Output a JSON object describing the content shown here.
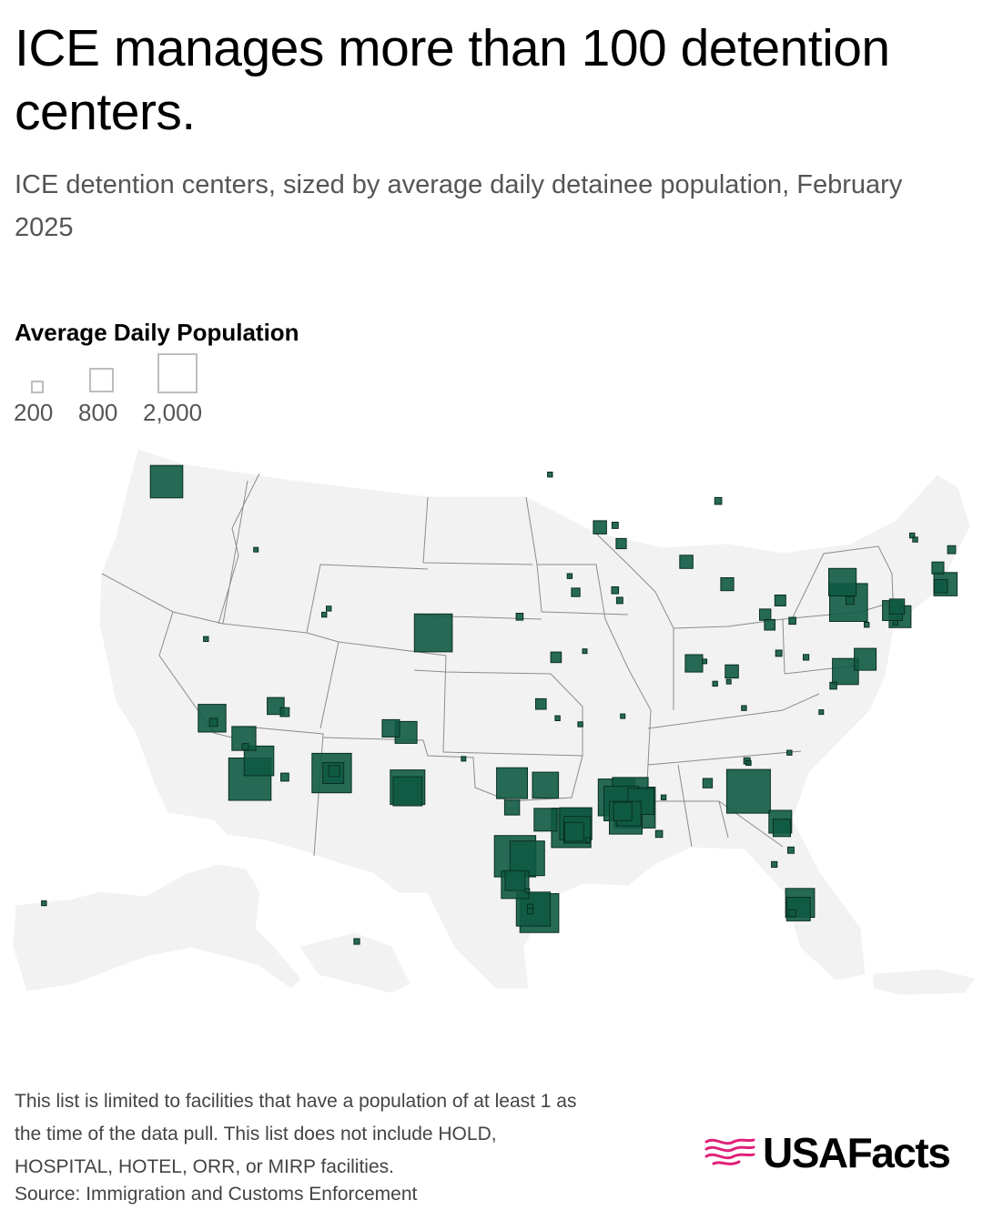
{
  "header": {
    "title": "ICE manages more than 100 detention centers.",
    "subtitle": "ICE detention centers, sized by average daily detainee population, February 2025"
  },
  "legend": {
    "title": "Average Daily Population",
    "items": [
      {
        "label": "200",
        "value": 200
      },
      {
        "label": "800",
        "value": 800
      },
      {
        "label": "2,000",
        "value": 2000
      }
    ]
  },
  "footer": {
    "note_line1": "This list is limited to facilities that have a population of at least 1 as",
    "note_line2": "the time of the data pull. This list does not include HOLD,",
    "note_line3": "HOSPITAL, HOTEL, ORR, or MIRP facilities.",
    "source": "Source: Immigration and Customs Enforcement",
    "brand": "USAFacts"
  },
  "colors": {
    "marker_fill": "#0f5a43",
    "marker_stroke": "#0a2f23",
    "map_fill": "#f2f2f2",
    "map_border": "#8a8a8a",
    "brand_pink": "#e0207a"
  },
  "chart_data": {
    "type": "proportional-symbol-map",
    "title": "ICE manages more than 100 detention centers.",
    "subtitle": "ICE detention centers, sized by average daily detainee population, February 2025",
    "size_variable": "Average Daily Population",
    "legend_values": [
      200,
      800,
      2000
    ],
    "facilities": [
      {
        "region": "Washington",
        "lon": -122.4,
        "lat": 47.25,
        "population": 1320
      },
      {
        "region": "Idaho",
        "lon": -116.5,
        "lat": 43.9,
        "population": 20
      },
      {
        "region": "Utah",
        "lon": -112.0,
        "lat": 40.7,
        "population": 30
      },
      {
        "region": "Utah",
        "lon": -111.7,
        "lat": 41.0,
        "population": 30
      },
      {
        "region": "Nevada",
        "lon": -119.8,
        "lat": 39.5,
        "population": 30
      },
      {
        "region": "Nevada",
        "lon": -115.2,
        "lat": 36.2,
        "population": 360
      },
      {
        "region": "Nevada",
        "lon": -114.6,
        "lat": 35.9,
        "population": 100
      },
      {
        "region": "California",
        "lon": -119.4,
        "lat": 35.6,
        "population": 960
      },
      {
        "region": "California",
        "lon": -119.3,
        "lat": 35.4,
        "population": 80
      },
      {
        "region": "California",
        "lon": -117.3,
        "lat": 34.6,
        "population": 720
      },
      {
        "region": "California",
        "lon": -117.2,
        "lat": 34.2,
        "population": 50
      },
      {
        "region": "California",
        "lon": -116.3,
        "lat": 33.5,
        "population": 1100
      },
      {
        "region": "California",
        "lon": -116.9,
        "lat": 32.6,
        "population": 2250
      },
      {
        "region": "Arizona",
        "lon": -114.6,
        "lat": 32.7,
        "population": 80
      },
      {
        "region": "Arizona",
        "lon": -111.5,
        "lat": 32.9,
        "population": 1950
      },
      {
        "region": "Arizona",
        "lon": -111.4,
        "lat": 32.9,
        "population": 550
      },
      {
        "region": "Arizona",
        "lon": -111.35,
        "lat": 33.0,
        "population": 150
      },
      {
        "region": "Colorado",
        "lon": -104.8,
        "lat": 39.8,
        "population": 1800
      },
      {
        "region": "New Mexico",
        "lon": -107.6,
        "lat": 35.1,
        "population": 380
      },
      {
        "region": "New Mexico",
        "lon": -106.6,
        "lat": 34.9,
        "population": 600
      },
      {
        "region": "New Mexico",
        "lon": -106.5,
        "lat": 32.2,
        "population": 1500
      },
      {
        "region": "New Mexico",
        "lon": -106.5,
        "lat": 32.0,
        "population": 1050
      },
      {
        "region": "Texas",
        "lon": -102.8,
        "lat": 33.6,
        "population": 20
      },
      {
        "region": "Texas",
        "lon": -99.6,
        "lat": 32.4,
        "population": 1200
      },
      {
        "region": "Texas",
        "lon": -99.6,
        "lat": 31.2,
        "population": 280
      },
      {
        "region": "Texas",
        "lon": -97.4,
        "lat": 32.3,
        "population": 850
      },
      {
        "region": "Texas",
        "lon": -97.4,
        "lat": 30.6,
        "population": 650
      },
      {
        "region": "Texas",
        "lon": -99.4,
        "lat": 28.8,
        "population": 2150
      },
      {
        "region": "Texas",
        "lon": -98.6,
        "lat": 28.7,
        "population": 1500
      },
      {
        "region": "Texas",
        "lon": -99.4,
        "lat": 27.4,
        "population": 950
      },
      {
        "region": "Texas",
        "lon": -99.4,
        "lat": 27.6,
        "population": 500
      },
      {
        "region": "Texas",
        "lon": -98.6,
        "lat": 27.1,
        "population": 20
      },
      {
        "region": "Texas",
        "lon": -98.2,
        "lat": 26.2,
        "population": 1450
      },
      {
        "region": "Texas",
        "lon": -97.8,
        "lat": 26.0,
        "population": 1900
      },
      {
        "region": "Texas",
        "lon": -98.4,
        "lat": 26.3,
        "population": 40
      },
      {
        "region": "Texas",
        "lon": -98.4,
        "lat": 26.1,
        "population": 40
      },
      {
        "region": "Texas",
        "lon": -95.7,
        "lat": 30.2,
        "population": 1950
      },
      {
        "region": "Texas",
        "lon": -95.4,
        "lat": 30.4,
        "population": 1300
      },
      {
        "region": "Texas",
        "lon": -95.3,
        "lat": 30.1,
        "population": 900
      },
      {
        "region": "Texas",
        "lon": -95.5,
        "lat": 30.0,
        "population": 450
      },
      {
        "region": "Texas",
        "lon": -94.6,
        "lat": 29.6,
        "population": 20
      },
      {
        "region": "Louisiana",
        "lon": -92.7,
        "lat": 31.7,
        "population": 1700
      },
      {
        "region": "Louisiana",
        "lon": -92.4,
        "lat": 31.4,
        "population": 1500
      },
      {
        "region": "Louisiana",
        "lon": -91.8,
        "lat": 31.8,
        "population": 1600
      },
      {
        "region": "Louisiana",
        "lon": -91.5,
        "lat": 31.2,
        "population": 2100
      },
      {
        "region": "Louisiana",
        "lon": -91.1,
        "lat": 31.5,
        "population": 850
      },
      {
        "region": "Louisiana",
        "lon": -92.1,
        "lat": 30.7,
        "population": 1350
      },
      {
        "region": "Louisiana",
        "lon": -91.9,
        "lat": 30.9,
        "population": 750
      },
      {
        "region": "Louisiana",
        "lon": -92.3,
        "lat": 31.0,
        "population": 420
      },
      {
        "region": "Louisiana",
        "lon": -89.9,
        "lat": 29.9,
        "population": 60
      },
      {
        "region": "Mississippi",
        "lon": -89.6,
        "lat": 31.7,
        "population": 30
      },
      {
        "region": "Alabama",
        "lon": -86.7,
        "lat": 32.4,
        "population": 110
      },
      {
        "region": "Georgia",
        "lon": -84.0,
        "lat": 32.0,
        "population": 2400
      },
      {
        "region": "Georgia",
        "lon": -84.1,
        "lat": 33.5,
        "population": 50
      },
      {
        "region": "Georgia",
        "lon": -84.0,
        "lat": 33.4,
        "population": 30
      },
      {
        "region": "South Carolina",
        "lon": -81.3,
        "lat": 33.9,
        "population": 30
      },
      {
        "region": "North Carolina",
        "lon": -79.2,
        "lat": 35.9,
        "population": 20
      },
      {
        "region": "Florida",
        "lon": -81.9,
        "lat": 30.5,
        "population": 650
      },
      {
        "region": "Florida",
        "lon": -81.8,
        "lat": 30.2,
        "population": 380
      },
      {
        "region": "Florida",
        "lon": -81.2,
        "lat": 29.1,
        "population": 50
      },
      {
        "region": "Florida",
        "lon": -82.3,
        "lat": 28.4,
        "population": 40
      },
      {
        "region": "Florida",
        "lon": -80.6,
        "lat": 26.5,
        "population": 1050
      },
      {
        "region": "Florida",
        "lon": -80.7,
        "lat": 26.2,
        "population": 700
      },
      {
        "region": "Florida",
        "lon": -81.1,
        "lat": 26.0,
        "population": 60
      },
      {
        "region": "Virginia",
        "lon": -77.6,
        "lat": 37.9,
        "population": 850
      },
      {
        "region": "Virginia",
        "lon": -78.4,
        "lat": 37.2,
        "population": 60
      },
      {
        "region": "Virginia",
        "lon": -76.3,
        "lat": 38.5,
        "population": 600
      },
      {
        "region": "West Virginia",
        "lon": -80.2,
        "lat": 38.6,
        "population": 40
      },
      {
        "region": "Pennsylvania",
        "lon": -77.4,
        "lat": 41.3,
        "population": 1800
      },
      {
        "region": "Pennsylvania",
        "lon": -77.3,
        "lat": 41.4,
        "population": 80
      },
      {
        "region": "Pennsylvania",
        "lon": -76.2,
        "lat": 40.2,
        "population": 30
      },
      {
        "region": "Pennsylvania",
        "lon": -77.8,
        "lat": 42.3,
        "population": 950
      },
      {
        "region": "New Jersey",
        "lon": -74.5,
        "lat": 40.9,
        "population": 500
      },
      {
        "region": "New Jersey",
        "lon": -74.2,
        "lat": 41.1,
        "population": 280
      },
      {
        "region": "New Jersey",
        "lon": -74.0,
        "lat": 40.6,
        "population": 600
      },
      {
        "region": "New Jersey",
        "lon": -74.3,
        "lat": 40.3,
        "population": 30
      },
      {
        "region": "Massachusetts",
        "lon": -71.0,
        "lat": 42.2,
        "population": 680
      },
      {
        "region": "Massachusetts",
        "lon": -71.3,
        "lat": 42.1,
        "population": 220
      },
      {
        "region": "New Hampshire",
        "lon": -71.5,
        "lat": 43.0,
        "population": 180
      },
      {
        "region": "Maine",
        "lon": -70.6,
        "lat": 43.9,
        "population": 80
      },
      {
        "region": "Vermont",
        "lon": -73.2,
        "lat": 44.6,
        "population": 30
      },
      {
        "region": "Vermont",
        "lon": -73.0,
        "lat": 44.4,
        "population": 30
      },
      {
        "region": "Ohio",
        "lon": -81.9,
        "lat": 41.4,
        "population": 150
      },
      {
        "region": "Ohio",
        "lon": -82.9,
        "lat": 40.7,
        "population": 160
      },
      {
        "region": "Ohio",
        "lon": -82.6,
        "lat": 40.2,
        "population": 140
      },
      {
        "region": "Ohio",
        "lon": -81.1,
        "lat": 40.4,
        "population": 60
      },
      {
        "region": "Ohio",
        "lon": -82.0,
        "lat": 38.8,
        "population": 50
      },
      {
        "region": "Michigan",
        "lon": -85.4,
        "lat": 42.2,
        "population": 210
      },
      {
        "region": "Michigan",
        "lon": -86.0,
        "lat": 46.3,
        "population": 60
      },
      {
        "region": "Indiana",
        "lon": -87.6,
        "lat": 38.3,
        "population": 380
      },
      {
        "region": "Indiana",
        "lon": -86.9,
        "lat": 38.4,
        "population": 20
      },
      {
        "region": "Kentucky",
        "lon": -85.1,
        "lat": 37.9,
        "population": 220
      },
      {
        "region": "Kentucky",
        "lon": -85.3,
        "lat": 37.4,
        "population": 20
      },
      {
        "region": "Kentucky",
        "lon": -86.2,
        "lat": 37.3,
        "population": 30
      },
      {
        "region": "Tennessee",
        "lon": -84.3,
        "lat": 36.1,
        "population": 30
      },
      {
        "region": "Wisconsin",
        "lon": -88.1,
        "lat": 43.3,
        "population": 220
      },
      {
        "region": "Minnesota",
        "lon": -93.8,
        "lat": 45.0,
        "population": 220
      },
      {
        "region": "Minnesota",
        "lon": -92.8,
        "lat": 45.1,
        "population": 50
      },
      {
        "region": "Minnesota",
        "lon": -92.4,
        "lat": 44.2,
        "population": 130
      },
      {
        "region": "North Dakota",
        "lon": -97.1,
        "lat": 47.6,
        "population": 30
      },
      {
        "region": "Iowa",
        "lon": -95.8,
        "lat": 42.6,
        "population": 30
      },
      {
        "region": "Iowa",
        "lon": -95.4,
        "lat": 41.8,
        "population": 90
      },
      {
        "region": "Iowa",
        "lon": -92.8,
        "lat": 41.9,
        "population": 60
      },
      {
        "region": "Iowa",
        "lon": -92.5,
        "lat": 41.4,
        "population": 50
      },
      {
        "region": "Nebraska",
        "lon": -99.1,
        "lat": 40.6,
        "population": 60
      },
      {
        "region": "Kansas",
        "lon": -96.7,
        "lat": 38.6,
        "population": 140
      },
      {
        "region": "Missouri",
        "lon": -94.8,
        "lat": 38.9,
        "population": 20
      },
      {
        "region": "Oklahoma",
        "lon": -97.7,
        "lat": 36.3,
        "population": 140
      },
      {
        "region": "Oklahoma",
        "lon": -96.6,
        "lat": 35.6,
        "population": 30
      },
      {
        "region": "Oklahoma",
        "lon": -95.1,
        "lat": 35.3,
        "population": 30
      },
      {
        "region": "Arkansas",
        "lon": -92.3,
        "lat": 35.7,
        "population": 20
      },
      {
        "region": "Alaska",
        "lon": -149.9,
        "lat": 61.2,
        "population": 30
      },
      {
        "region": "Hawaii",
        "lon": -157.9,
        "lat": 21.3,
        "population": 40
      }
    ]
  }
}
